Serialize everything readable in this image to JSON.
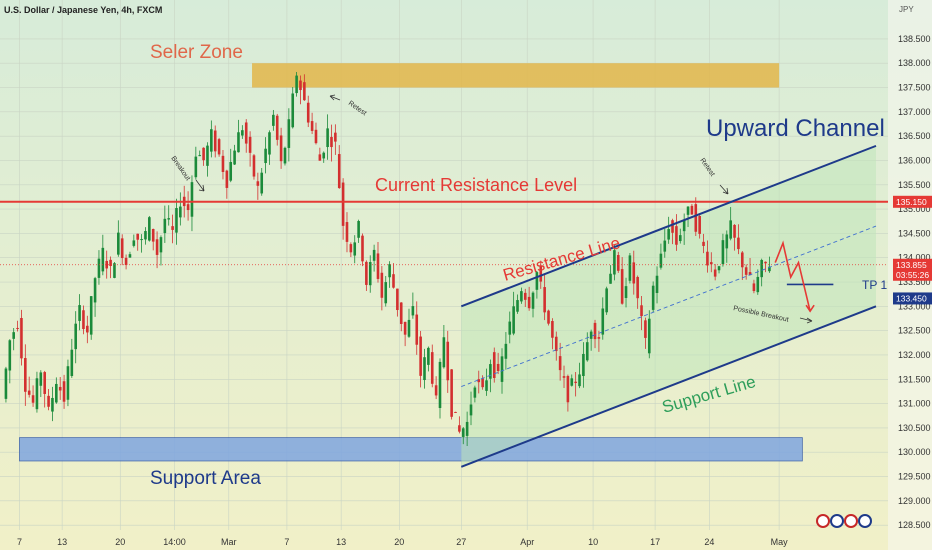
{
  "header": {
    "symbol_title": "U.S. Dollar / Japanese Yen, 4h, FXCM",
    "currency": "JPY"
  },
  "chart_data": {
    "type": "candlestick",
    "symbol": "USDJPY",
    "timeframe": "4h",
    "ylim": [
      128.4,
      139.3
    ],
    "y_ticks": [
      128.5,
      129.0,
      129.5,
      130.0,
      130.5,
      131.0,
      131.5,
      132.0,
      132.5,
      133.0,
      133.5,
      134.0,
      134.5,
      135.0,
      135.5,
      136.0,
      136.5,
      137.0,
      137.5,
      138.0,
      138.5
    ],
    "y_tick_labels": [
      "128.500",
      "129.000",
      "129.500",
      "130.000",
      "130.500",
      "131.000",
      "131.500",
      "132.000",
      "132.500",
      "133.000",
      "133.500",
      "134.000",
      "134.500",
      "135.000",
      "135.500",
      "136.000",
      "136.500",
      "137.000",
      "137.500",
      "138.000",
      "138.500"
    ],
    "x_ticks": [
      "7",
      "13",
      "20",
      "14:00",
      "Mar",
      "7",
      "13",
      "20",
      "27",
      "Apr",
      "10",
      "17",
      "24",
      "May"
    ],
    "x_tick_index": [
      4,
      15,
      30,
      44,
      58,
      73,
      87,
      102,
      118,
      135,
      152,
      168,
      182,
      200
    ],
    "index_range": [
      0,
      225
    ],
    "close_path": [
      [
        0,
        131.1
      ],
      [
        2,
        132.3
      ],
      [
        4,
        132.7
      ],
      [
        6,
        131.4
      ],
      [
        8,
        131.0
      ],
      [
        10,
        131.7
      ],
      [
        12,
        130.8
      ],
      [
        14,
        131.5
      ],
      [
        16,
        131.1
      ],
      [
        18,
        132.2
      ],
      [
        20,
        132.9
      ],
      [
        22,
        132.5
      ],
      [
        24,
        133.6
      ],
      [
        26,
        134.1
      ],
      [
        28,
        133.7
      ],
      [
        30,
        134.4
      ],
      [
        32,
        133.9
      ],
      [
        34,
        134.5
      ],
      [
        36,
        134.3
      ],
      [
        38,
        134.7
      ],
      [
        40,
        134.1
      ],
      [
        42,
        134.8
      ],
      [
        44,
        134.5
      ],
      [
        46,
        135.2
      ],
      [
        48,
        135.0
      ],
      [
        50,
        136.2
      ],
      [
        52,
        136.0
      ],
      [
        54,
        136.5
      ],
      [
        56,
        136.1
      ],
      [
        58,
        135.6
      ],
      [
        60,
        136.3
      ],
      [
        62,
        136.7
      ],
      [
        64,
        136.0
      ],
      [
        66,
        135.4
      ],
      [
        68,
        136.2
      ],
      [
        70,
        136.9
      ],
      [
        72,
        135.9
      ],
      [
        74,
        136.7
      ],
      [
        76,
        137.8
      ],
      [
        78,
        137.2
      ],
      [
        80,
        136.6
      ],
      [
        82,
        136.0
      ],
      [
        84,
        136.6
      ],
      [
        86,
        136.3
      ],
      [
        88,
        134.7
      ],
      [
        90,
        134.2
      ],
      [
        92,
        134.6
      ],
      [
        94,
        133.5
      ],
      [
        96,
        134.1
      ],
      [
        98,
        133.2
      ],
      [
        100,
        133.8
      ],
      [
        102,
        133.0
      ],
      [
        104,
        132.4
      ],
      [
        106,
        132.9
      ],
      [
        108,
        131.6
      ],
      [
        110,
        132.1
      ],
      [
        112,
        131.0
      ],
      [
        114,
        132.4
      ],
      [
        116,
        130.9
      ],
      [
        118,
        130.4
      ],
      [
        120,
        130.6
      ],
      [
        122,
        131.5
      ],
      [
        124,
        131.2
      ],
      [
        126,
        131.9
      ],
      [
        128,
        131.5
      ],
      [
        130,
        132.3
      ],
      [
        132,
        132.9
      ],
      [
        134,
        133.4
      ],
      [
        136,
        133.1
      ],
      [
        138,
        133.7
      ],
      [
        140,
        133.0
      ],
      [
        142,
        132.3
      ],
      [
        144,
        131.6
      ],
      [
        146,
        131.2
      ],
      [
        148,
        131.5
      ],
      [
        150,
        131.9
      ],
      [
        152,
        132.6
      ],
      [
        154,
        132.4
      ],
      [
        156,
        133.5
      ],
      [
        158,
        134.0
      ],
      [
        160,
        133.2
      ],
      [
        162,
        133.9
      ],
      [
        164,
        133.1
      ],
      [
        166,
        132.2
      ],
      [
        168,
        133.4
      ],
      [
        170,
        134.0
      ],
      [
        172,
        134.7
      ],
      [
        174,
        134.3
      ],
      [
        176,
        134.8
      ],
      [
        178,
        135.0
      ],
      [
        180,
        134.4
      ],
      [
        182,
        134.0
      ],
      [
        184,
        133.7
      ],
      [
        186,
        134.2
      ],
      [
        188,
        134.6
      ],
      [
        190,
        134.1
      ],
      [
        192,
        133.7
      ],
      [
        194,
        133.3
      ],
      [
        196,
        133.8
      ],
      [
        198,
        133.9
      ]
    ],
    "annotations": {
      "seller_zone_label": "Seler Zone",
      "resistance_label": "Current Resistance Level",
      "channel_title": "Upward Channel",
      "resistance_line_label": "Resistance Line",
      "support_line_label": "Support Line",
      "support_area_label": "Support Area",
      "breakout_label": "Breakout",
      "retest_label": "Retest",
      "retest2_label": "Retest",
      "possible_breakout_label": "Possible Breakout",
      "tp_label": "TP 1"
    },
    "levels": {
      "seller_zone": [
        137.5,
        138.0
      ],
      "resistance": 135.15,
      "support_area": [
        129.82,
        130.3
      ],
      "tp1": 133.45,
      "current": 133.855
    },
    "channel": {
      "upper": [
        [
          118,
          133.0
        ],
        [
          225,
          136.3
        ]
      ],
      "lower": [
        [
          118,
          129.7
        ],
        [
          225,
          133.0
        ]
      ],
      "mid": [
        [
          118,
          131.35
        ],
        [
          225,
          134.65
        ]
      ]
    },
    "price_tags": [
      {
        "value": "135.150",
        "color": "#e53935"
      },
      {
        "value": "133.855",
        "color": "#e53935"
      },
      {
        "value": "03:55:26",
        "color": "#e53935"
      },
      {
        "value": "133.450",
        "color": "#1e3a8a"
      }
    ],
    "colors": {
      "up": "#1b8a3a",
      "down": "#d32f2f",
      "resistance": "#e53935",
      "channel": "#1e3a8a",
      "seller_zone": "#e2b64a",
      "support_area": "#7fa6e0"
    }
  }
}
